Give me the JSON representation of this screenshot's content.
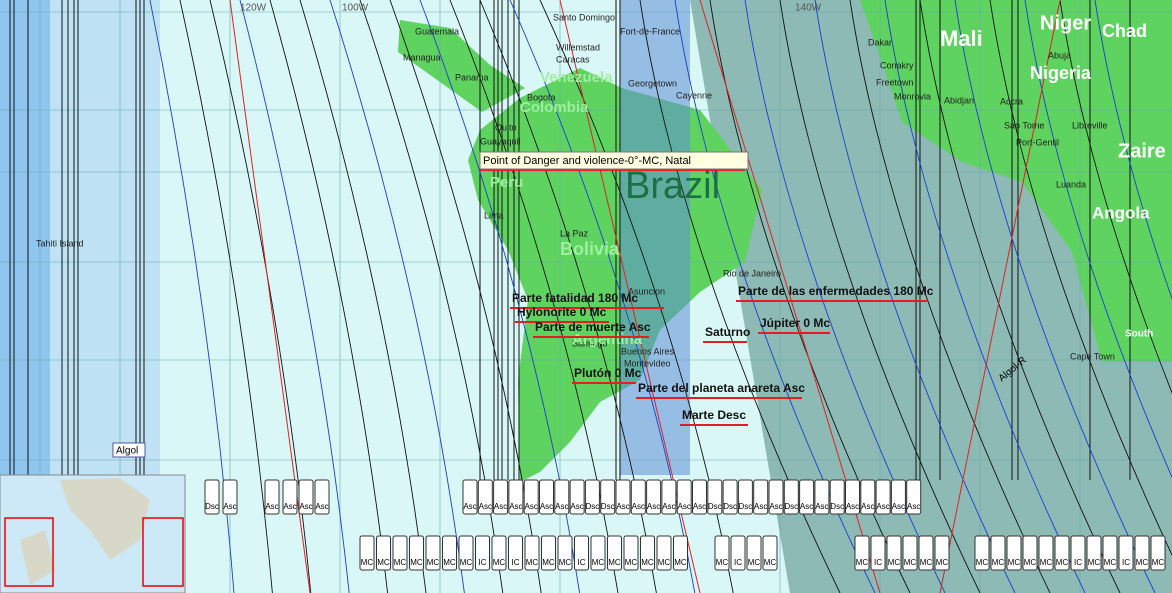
{
  "map": {
    "longitudes": [
      "120W",
      "100W",
      "140W"
    ],
    "places": [
      "Guatemala",
      "Managua",
      "Panama",
      "Santo Domingo",
      "Fort-de-France",
      "Willemstad",
      "Caracas",
      "Georgetown",
      "Cayenne",
      "Bogota",
      "Quito",
      "Guayaquil",
      "Lima",
      "La Paz",
      "Asuncion",
      "Rio de Janeiro",
      "Santiago",
      "Buenos Aires",
      "Montevideo",
      "Dakar",
      "Conakry",
      "Freetown",
      "Monrovia",
      "Abidjan",
      "Accra",
      "Abuja",
      "Sao Tome",
      "Libreville",
      "Port-Gentil",
      "Luanda",
      "Cape Town",
      "Tahiti Island"
    ],
    "countries": [
      "Venezuela",
      "Colombia",
      "Peru",
      "Bolivia",
      "Argentina",
      "Mali",
      "Niger",
      "Nigeria",
      "Chad",
      "Angola",
      "Zaire",
      "South"
    ],
    "big_country": "Brazil",
    "stars": [
      "Algol",
      "Algol-R"
    ],
    "tooltip": "Point of Danger and violence-0°-MC, Natal",
    "annotations": [
      "Parte fatalidad 180 Mc",
      "Hylonorite 0 Mc",
      "Parte de muerte Asc",
      "Plutón 0 Mc",
      "Parte del planeta anareta Asc",
      "Marte Desc",
      "Saturno",
      "Júpiter 0 Mc",
      "Parte de las enfermedades 180 Mc"
    ],
    "line_labels_top": [
      "Dsc",
      "Asc",
      "Asc",
      "Asc",
      "Asc",
      "Asc",
      "Asc",
      "Asc",
      "Asc",
      "Asc",
      "Asc",
      "Asc",
      "Asc",
      "Asc",
      "Dsc",
      "Dsc",
      "Asc",
      "Asc",
      "Asc",
      "Asc",
      "Asc",
      "Asc",
      "Dsc",
      "Dsc",
      "Dsc",
      "Asc",
      "Asc",
      "Dsc",
      "Asc",
      "Asc",
      "Dsc",
      "Asc",
      "Asc",
      "Asc",
      "Asc",
      "Asc"
    ],
    "line_labels_bottom": [
      "MC",
      "MC",
      "MC",
      "MC",
      "MC",
      "MC",
      "MC",
      "IC",
      "MC",
      "IC",
      "MC",
      "MC",
      "MC",
      "IC",
      "MC",
      "MC",
      "MC",
      "MC",
      "MC",
      "MC",
      "MC",
      "IC",
      "MC",
      "MC",
      "MC",
      "IC",
      "MC",
      "MC",
      "MC",
      "MC",
      "MC",
      "MC",
      "MC",
      "MC",
      "MC",
      "MC",
      "IC",
      "MC",
      "MC",
      "IC",
      "MC",
      "MC"
    ]
  }
}
